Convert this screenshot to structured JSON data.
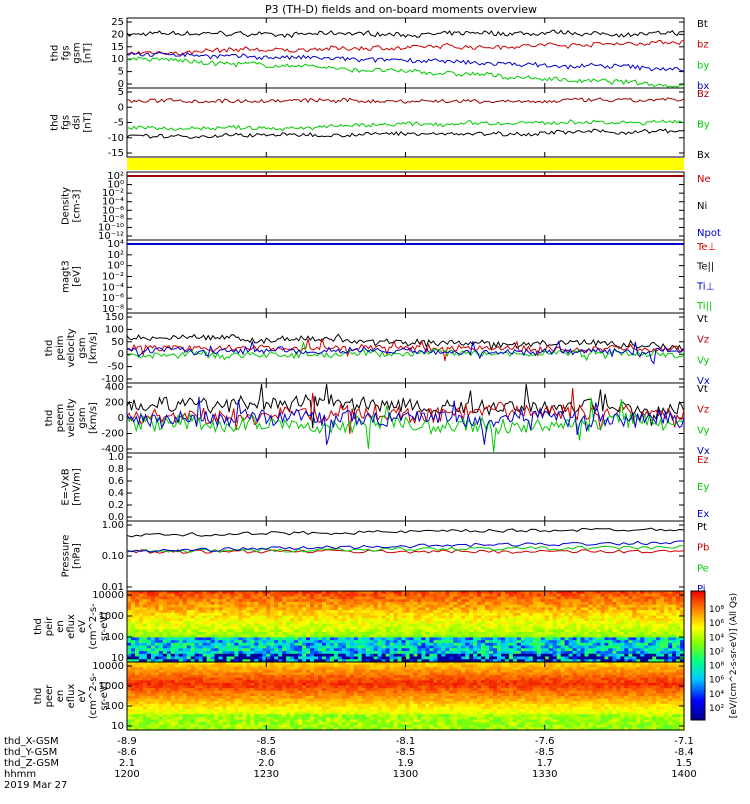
{
  "title": "P3 (TH-D) fields and on-board moments overview",
  "x_ticks": [
    "1200",
    "1230",
    "1300",
    "1330",
    "1400"
  ],
  "orbit": {
    "row_labels": [
      "thd_X-GSM",
      "thd_Y-GSM",
      "thd_Z-GSM",
      "hhmm",
      "2019 Mar 27"
    ],
    "x_gsm": [
      "-8.9",
      "-8.5",
      "-8.1",
      "-7.6",
      "-7.1"
    ],
    "y_gsm": [
      "-8.6",
      "-8.6",
      "-8.5",
      "-8.5",
      "-8.4"
    ],
    "z_gsm": [
      "2.1",
      "2.0",
      "1.9",
      "1.7",
      "1.5"
    ]
  },
  "colors": {
    "black": "#000000",
    "red": "#cc0000",
    "green": "#00cc00",
    "blue": "#0000cc",
    "darkred": "#990000",
    "yellow": "#ffff00"
  },
  "chart_data": [
    {
      "type": "line",
      "panel": "fgs_gsm",
      "ylabel_lines": [
        "thd",
        "fgs",
        "gsm",
        "[nT]"
      ],
      "yticks": [
        "25",
        "20",
        "15",
        "10",
        "5",
        "0"
      ],
      "ylim": [
        0,
        26
      ],
      "x": [
        "12:00",
        "14:00"
      ],
      "series": [
        {
          "name": "Bt",
          "color": "#000000",
          "start": 20,
          "end": 20
        },
        {
          "name": "bz",
          "color": "#cc0000",
          "start": 13,
          "end": 17
        },
        {
          "name": "by",
          "color": "#00cc00",
          "start": 11,
          "end": 1
        },
        {
          "name": "bx",
          "color": "#0000cc",
          "start": 13,
          "end": 7
        }
      ]
    },
    {
      "type": "line",
      "panel": "fgs_dsl",
      "ylabel_lines": [
        "thd",
        "fgs",
        "dsl",
        "[nT]"
      ],
      "yticks": [
        "5",
        "0",
        "-5",
        "-10",
        "-15"
      ],
      "ylim": [
        -18,
        9
      ],
      "x": [
        "12:00",
        "14:00"
      ],
      "series": [
        {
          "name": "Bz",
          "color": "#990000",
          "start": 4,
          "end": 4
        },
        {
          "name": "By",
          "color": "#00cc00",
          "start": -7,
          "end": -4
        },
        {
          "name": "Bx",
          "color": "#000000",
          "start": -10,
          "end": -8
        }
      ]
    },
    {
      "type": "line",
      "panel": "density",
      "ylabel_lines": [
        "Density",
        "[cm-3]"
      ],
      "yticks": [
        "10²",
        "10⁰",
        "10⁻²",
        "10⁻⁴",
        "10⁻⁶",
        "10⁻⁸",
        "10⁻¹⁰",
        "10⁻¹²"
      ],
      "ylim": [
        -13,
        2
      ],
      "legend": [
        {
          "name": "Ne",
          "color": "#cc0000"
        },
        {
          "name": "Ni",
          "color": "#000000"
        },
        {
          "name": "Npot",
          "color": "#0000cc"
        }
      ]
    },
    {
      "type": "line",
      "panel": "temperature",
      "ylabel_lines": [
        "magt3",
        "[eV]"
      ],
      "yticks": [
        "10⁴",
        "10²",
        "10⁰",
        "10⁻²",
        "10⁻⁴",
        "10⁻⁶",
        "10⁻⁸"
      ],
      "ylim": [
        -8,
        4
      ],
      "legend": [
        {
          "name": "Te⊥",
          "color": "#cc0000"
        },
        {
          "name": "Te||",
          "color": "#000000"
        },
        {
          "name": "Ti⊥",
          "color": "#0000cc"
        },
        {
          "name": "Ti||",
          "color": "#00cc00"
        }
      ]
    },
    {
      "type": "line",
      "panel": "peim_velocity",
      "ylabel_lines": [
        "thd",
        "peim",
        "velocity",
        "gsm",
        "[km/s]"
      ],
      "yticks": [
        "150",
        "100",
        "50",
        "0",
        "-50",
        "-100"
      ],
      "ylim": [
        -110,
        150
      ],
      "series": [
        {
          "name": "Vt",
          "color": "#000000",
          "start": 60,
          "end": 30
        },
        {
          "name": "Vz",
          "color": "#cc0000",
          "start": 20,
          "end": 15
        },
        {
          "name": "Vy",
          "color": "#00cc00",
          "start": -5,
          "end": 0
        },
        {
          "name": "Vx",
          "color": "#0000cc",
          "start": 10,
          "end": 5
        }
      ]
    },
    {
      "type": "line",
      "panel": "peem_velocity",
      "ylabel_lines": [
        "thd",
        "peem",
        "velocity",
        "gsm",
        "[km/s]"
      ],
      "yticks": [
        "400",
        "200",
        "0",
        "-200",
        "-400"
      ],
      "ylim": [
        -400,
        400
      ],
      "series": [
        {
          "name": "Vt",
          "color": "#000000",
          "start": 180,
          "end": 120
        },
        {
          "name": "Vz",
          "color": "#cc0000",
          "start": 50,
          "end": 50
        },
        {
          "name": "Vy",
          "color": "#00cc00",
          "start": -60,
          "end": -40
        },
        {
          "name": "Vx",
          "color": "#0000cc",
          "start": -20,
          "end": 0
        }
      ]
    },
    {
      "type": "line",
      "panel": "efield",
      "ylabel_lines": [
        "E=-VxB",
        "[mV/m]"
      ],
      "yticks": [
        "1.0",
        "0.8",
        "0.6",
        "0.4",
        "0.2",
        "0.0"
      ],
      "ylim": [
        0,
        1
      ],
      "legend": [
        {
          "name": "Ez",
          "color": "#cc0000"
        },
        {
          "name": "Ey",
          "color": "#00cc00"
        },
        {
          "name": "Ex",
          "color": "#0000cc"
        }
      ]
    },
    {
      "type": "line",
      "panel": "pressure",
      "ylabel_lines": [
        "Pressure",
        "[nPa]"
      ],
      "yticks": [
        "1.00",
        "0.10",
        "0.01"
      ],
      "ylim": [
        0.01,
        1.2
      ],
      "log_scale": true,
      "series": [
        {
          "name": "Pt",
          "color": "#000000",
          "start": 0.45,
          "end": 0.7
        },
        {
          "name": "Pb",
          "color": "#cc0000",
          "start": 0.15,
          "end": 0.15
        },
        {
          "name": "Pe",
          "color": "#00cc00",
          "start": 0.15,
          "end": 0.2
        },
        {
          "name": "Pi",
          "color": "#0000cc",
          "start": 0.15,
          "end": 0.28
        }
      ]
    },
    {
      "type": "heatmap",
      "panel": "peir_en_eflux",
      "ylabel_lines": [
        "thd",
        "peir",
        "en",
        "eflux",
        "eV",
        "(cm^2-s-",
        "sr-eV)"
      ],
      "yticks": [
        "10000",
        "1000",
        "100",
        "10"
      ],
      "colorbar_ticks": [
        "10⁸",
        "10⁶",
        "10⁴",
        "10²"
      ],
      "colorbar_label": "[eV/(cm^2-s-sr-eV)] (All Qs)"
    },
    {
      "type": "heatmap",
      "panel": "peer_en_eflux",
      "ylabel_lines": [
        "thd",
        "peer",
        "en",
        "eflux",
        "eV",
        "(cm^2-s-",
        "sr-eV)"
      ],
      "yticks": [
        "10000",
        "1000",
        "100",
        "10"
      ],
      "colorbar_ticks": [
        "10⁸",
        "10⁶",
        "10⁴",
        "10²"
      ],
      "colorbar_label": "[eV/(cm^2-s-sr-eV)]"
    }
  ]
}
